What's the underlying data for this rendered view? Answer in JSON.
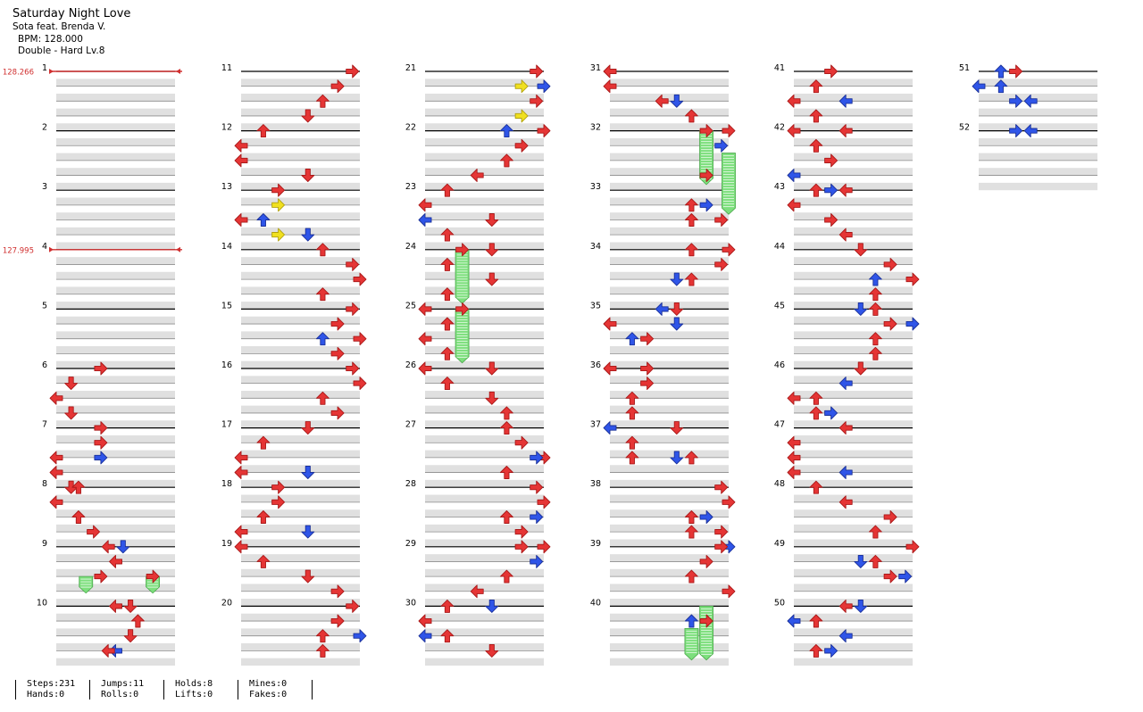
{
  "song": {
    "title": "Saturday Night Love",
    "artist": "Sota feat. Brenda V.",
    "bpm": "BPM: 128.000",
    "difficulty": "Double - Hard  Lv.8"
  },
  "bpm_changes": [
    {
      "measure": 1,
      "label": "128.266"
    },
    {
      "measure": 4,
      "label": "127.995"
    }
  ],
  "measures_per_column": 10,
  "total_measures": 52,
  "colors": {
    "red": "#e53535",
    "blue": "#2f55e8",
    "yellow": "#f0e020",
    "hold": "#7ddf7d",
    "stripe": "#e0e0e0",
    "bpm": "#d03030"
  },
  "notes": [
    [
      6,
      0,
      6,
      "r"
    ],
    [
      6,
      1,
      2,
      "r"
    ],
    [
      6,
      2,
      0,
      "r"
    ],
    [
      6,
      3,
      2,
      "r"
    ],
    [
      7,
      0,
      6,
      "r"
    ],
    [
      7,
      1,
      6,
      "r"
    ],
    [
      7,
      2,
      0,
      "r"
    ],
    [
      7,
      2,
      6,
      "b"
    ],
    [
      7,
      3,
      0,
      "r"
    ],
    [
      8,
      0,
      2,
      "r"
    ],
    [
      8,
      0,
      3,
      "r"
    ],
    [
      8,
      1,
      0,
      "r"
    ],
    [
      8,
      2,
      3,
      "r"
    ],
    [
      8,
      3,
      5,
      "r"
    ],
    [
      9,
      0,
      7,
      "r"
    ],
    [
      9,
      0,
      9,
      "b"
    ],
    [
      9,
      1,
      8,
      "r"
    ],
    [
      9,
      2,
      6,
      "r"
    ],
    [
      9,
      2,
      13,
      "r"
    ],
    [
      10,
      0,
      8,
      "r"
    ],
    [
      10,
      0,
      10,
      "r"
    ],
    [
      10,
      1,
      11,
      "r"
    ],
    [
      10,
      2,
      10,
      "r"
    ],
    [
      10,
      3,
      8,
      "b"
    ],
    [
      10,
      3,
      7,
      "r"
    ],
    [
      11,
      0,
      15,
      "r"
    ],
    [
      11,
      1,
      13,
      "r"
    ],
    [
      11,
      2,
      11,
      "r"
    ],
    [
      11,
      3,
      9,
      "r"
    ],
    [
      12,
      0,
      3,
      "r"
    ],
    [
      12,
      1,
      0,
      "r"
    ],
    [
      12,
      2,
      0,
      "r"
    ],
    [
      12,
      3,
      9,
      "r"
    ],
    [
      13,
      0,
      5,
      "r"
    ],
    [
      13,
      1,
      5,
      "y"
    ],
    [
      13,
      2,
      0,
      "r"
    ],
    [
      13,
      2,
      3,
      "b"
    ],
    [
      13,
      3,
      5,
      "y"
    ],
    [
      13,
      3,
      9,
      "b"
    ],
    [
      14,
      0,
      11,
      "r"
    ],
    [
      14,
      1,
      15,
      "r"
    ],
    [
      14,
      2,
      16,
      "r"
    ],
    [
      14,
      3,
      11,
      "r"
    ],
    [
      15,
      0,
      15,
      "r"
    ],
    [
      15,
      1,
      13,
      "r"
    ],
    [
      15,
      2,
      11,
      "b"
    ],
    [
      15,
      2,
      16,
      "r"
    ],
    [
      15,
      3,
      13,
      "r"
    ],
    [
      16,
      0,
      15,
      "r"
    ],
    [
      16,
      1,
      16,
      "r"
    ],
    [
      16,
      2,
      11,
      "r"
    ],
    [
      16,
      3,
      13,
      "r"
    ],
    [
      17,
      0,
      9,
      "r"
    ],
    [
      17,
      1,
      3,
      "r"
    ],
    [
      17,
      2,
      0,
      "r"
    ],
    [
      17,
      3,
      0,
      "r"
    ],
    [
      17,
      3,
      9,
      "b"
    ],
    [
      18,
      0,
      5,
      "r"
    ],
    [
      18,
      1,
      5,
      "r"
    ],
    [
      18,
      2,
      3,
      "r"
    ],
    [
      18,
      3,
      0,
      "r"
    ],
    [
      18,
      3,
      9,
      "b"
    ],
    [
      19,
      0,
      0,
      "r"
    ],
    [
      19,
      1,
      3,
      "r"
    ],
    [
      19,
      2,
      9,
      "r"
    ],
    [
      19,
      3,
      13,
      "r"
    ],
    [
      20,
      0,
      15,
      "r"
    ],
    [
      20,
      1,
      13,
      "r"
    ],
    [
      20,
      2,
      11,
      "r"
    ],
    [
      20,
      2,
      16,
      "b"
    ],
    [
      20,
      3,
      11,
      "r"
    ],
    [
      21,
      0,
      15,
      "r"
    ],
    [
      21,
      1,
      13,
      "y"
    ],
    [
      21,
      1,
      16,
      "b"
    ],
    [
      21,
      2,
      15,
      "r"
    ],
    [
      21,
      3,
      13,
      "y"
    ],
    [
      22,
      0,
      11,
      "b"
    ],
    [
      22,
      0,
      16,
      "r"
    ],
    [
      22,
      1,
      13,
      "r"
    ],
    [
      22,
      2,
      11,
      "r"
    ],
    [
      22,
      3,
      7,
      "r"
    ],
    [
      23,
      0,
      3,
      "r"
    ],
    [
      23,
      1,
      0,
      "r"
    ],
    [
      23,
      2,
      9,
      "r"
    ],
    [
      23,
      2,
      0,
      "b"
    ],
    [
      23,
      3,
      3,
      "r"
    ],
    [
      24,
      0,
      5,
      "r"
    ],
    [
      24,
      0,
      9,
      "r"
    ],
    [
      24,
      1,
      3,
      "r"
    ],
    [
      24,
      2,
      9,
      "r"
    ],
    [
      24,
      3,
      3,
      "r"
    ],
    [
      25,
      0,
      0,
      "r"
    ],
    [
      25,
      0,
      5,
      "r"
    ],
    [
      25,
      1,
      3,
      "r"
    ],
    [
      25,
      2,
      0,
      "r"
    ],
    [
      25,
      3,
      3,
      "r"
    ],
    [
      26,
      0,
      0,
      "r"
    ],
    [
      26,
      0,
      9,
      "r"
    ],
    [
      26,
      1,
      3,
      "r"
    ],
    [
      26,
      2,
      9,
      "r"
    ],
    [
      26,
      3,
      11,
      "r"
    ],
    [
      27,
      0,
      11,
      "r"
    ],
    [
      27,
      1,
      13,
      "r"
    ],
    [
      27,
      2,
      16,
      "r"
    ],
    [
      27,
      2,
      15,
      "b"
    ],
    [
      27,
      3,
      11,
      "r"
    ],
    [
      28,
      0,
      15,
      "r"
    ],
    [
      28,
      1,
      16,
      "r"
    ],
    [
      28,
      2,
      11,
      "r"
    ],
    [
      28,
      2,
      15,
      "b"
    ],
    [
      28,
      3,
      13,
      "r"
    ],
    [
      29,
      0,
      16,
      "r"
    ],
    [
      29,
      0,
      13,
      "r"
    ],
    [
      29,
      1,
      15,
      "b"
    ],
    [
      29,
      2,
      11,
      "r"
    ],
    [
      29,
      3,
      7,
      "r"
    ],
    [
      30,
      0,
      3,
      "r"
    ],
    [
      30,
      0,
      9,
      "b"
    ],
    [
      30,
      1,
      0,
      "r"
    ],
    [
      30,
      2,
      3,
      "r"
    ],
    [
      30,
      2,
      0,
      "b"
    ],
    [
      30,
      3,
      9,
      "r"
    ],
    [
      31,
      0,
      0,
      "r"
    ],
    [
      31,
      1,
      0,
      "r"
    ],
    [
      31,
      2,
      7,
      "r"
    ],
    [
      31,
      2,
      9,
      "b"
    ],
    [
      31,
      3,
      11,
      "r"
    ],
    [
      32,
      0,
      13,
      "r"
    ],
    [
      32,
      0,
      16,
      "r"
    ],
    [
      32,
      1,
      15,
      "b"
    ],
    [
      32,
      3,
      13,
      "r"
    ],
    [
      33,
      1,
      13,
      "b"
    ],
    [
      33,
      1,
      11,
      "r"
    ],
    [
      33,
      2,
      11,
      "r"
    ],
    [
      33,
      2,
      15,
      "r"
    ],
    [
      34,
      0,
      11,
      "r"
    ],
    [
      34,
      0,
      16,
      "r"
    ],
    [
      34,
      1,
      15,
      "r"
    ],
    [
      34,
      2,
      9,
      "b"
    ],
    [
      34,
      2,
      11,
      "r"
    ],
    [
      35,
      0,
      9,
      "r"
    ],
    [
      35,
      0,
      7,
      "b"
    ],
    [
      35,
      1,
      0,
      "r"
    ],
    [
      35,
      1,
      9,
      "b"
    ],
    [
      35,
      2,
      3,
      "b"
    ],
    [
      35,
      2,
      5,
      "r"
    ],
    [
      36,
      0,
      0,
      "r"
    ],
    [
      36,
      0,
      5,
      "r"
    ],
    [
      36,
      1,
      5,
      "r"
    ],
    [
      36,
      2,
      3,
      "r"
    ],
    [
      36,
      3,
      3,
      "r"
    ],
    [
      37,
      0,
      9,
      "r"
    ],
    [
      37,
      0,
      0,
      "b"
    ],
    [
      37,
      1,
      3,
      "r"
    ],
    [
      37,
      2,
      3,
      "r"
    ],
    [
      37,
      2,
      9,
      "b"
    ],
    [
      37,
      2,
      11,
      "r"
    ],
    [
      38,
      0,
      15,
      "r"
    ],
    [
      38,
      1,
      16,
      "r"
    ],
    [
      38,
      2,
      11,
      "r"
    ],
    [
      38,
      2,
      13,
      "b"
    ],
    [
      38,
      3,
      11,
      "r"
    ],
    [
      38,
      3,
      15,
      "r"
    ],
    [
      39,
      0,
      16,
      "b"
    ],
    [
      39,
      0,
      15,
      "r"
    ],
    [
      39,
      1,
      13,
      "r"
    ],
    [
      39,
      2,
      11,
      "r"
    ],
    [
      39,
      3,
      16,
      "r"
    ],
    [
      40,
      1,
      11,
      "b"
    ],
    [
      40,
      1,
      13,
      "r"
    ],
    [
      41,
      0,
      5,
      "r"
    ],
    [
      41,
      1,
      3,
      "r"
    ],
    [
      41,
      2,
      0,
      "r"
    ],
    [
      41,
      2,
      7,
      "b"
    ],
    [
      41,
      3,
      3,
      "r"
    ],
    [
      42,
      0,
      0,
      "r"
    ],
    [
      42,
      0,
      7,
      "r"
    ],
    [
      42,
      1,
      3,
      "r"
    ],
    [
      42,
      2,
      5,
      "r"
    ],
    [
      42,
      3,
      0,
      "b"
    ],
    [
      43,
      0,
      3,
      "r"
    ],
    [
      43,
      0,
      5,
      "b"
    ],
    [
      43,
      0,
      7,
      "r"
    ],
    [
      43,
      1,
      0,
      "r"
    ],
    [
      43,
      2,
      5,
      "r"
    ],
    [
      43,
      3,
      7,
      "r"
    ],
    [
      44,
      0,
      9,
      "r"
    ],
    [
      44,
      1,
      13,
      "r"
    ],
    [
      44,
      2,
      11,
      "b"
    ],
    [
      44,
      2,
      16,
      "r"
    ],
    [
      44,
      3,
      11,
      "r"
    ],
    [
      45,
      0,
      9,
      "b"
    ],
    [
      45,
      0,
      11,
      "r"
    ],
    [
      45,
      1,
      13,
      "r"
    ],
    [
      45,
      1,
      16,
      "b"
    ],
    [
      45,
      2,
      11,
      "r"
    ],
    [
      45,
      3,
      11,
      "r"
    ],
    [
      46,
      0,
      9,
      "r"
    ],
    [
      46,
      1,
      7,
      "b"
    ],
    [
      46,
      2,
      3,
      "r"
    ],
    [
      46,
      2,
      0,
      "r"
    ],
    [
      46,
      3,
      5,
      "b"
    ],
    [
      46,
      3,
      3,
      "r"
    ],
    [
      47,
      0,
      7,
      "r"
    ],
    [
      47,
      1,
      0,
      "r"
    ],
    [
      47,
      2,
      0,
      "r"
    ],
    [
      47,
      3,
      0,
      "r"
    ],
    [
      47,
      3,
      7,
      "b"
    ],
    [
      48,
      0,
      3,
      "r"
    ],
    [
      48,
      1,
      7,
      "r"
    ],
    [
      48,
      2,
      13,
      "r"
    ],
    [
      48,
      3,
      11,
      "r"
    ],
    [
      49,
      0,
      16,
      "r"
    ],
    [
      49,
      1,
      9,
      "b"
    ],
    [
      49,
      1,
      11,
      "r"
    ],
    [
      49,
      2,
      13,
      "r"
    ],
    [
      49,
      2,
      15,
      "b"
    ],
    [
      50,
      0,
      7,
      "r"
    ],
    [
      50,
      0,
      9,
      "b"
    ],
    [
      50,
      1,
      3,
      "r"
    ],
    [
      50,
      1,
      0,
      "b"
    ],
    [
      50,
      2,
      7,
      "b"
    ],
    [
      50,
      3,
      3,
      "r"
    ],
    [
      50,
      3,
      5,
      "b"
    ],
    [
      51,
      0,
      5,
      "r"
    ],
    [
      51,
      0,
      3,
      "b"
    ],
    [
      51,
      1,
      3,
      "b"
    ],
    [
      51,
      1,
      0,
      "b"
    ],
    [
      51,
      2,
      5,
      "b"
    ],
    [
      51,
      2,
      7,
      "b"
    ],
    [
      52,
      0,
      5,
      "b"
    ],
    [
      52,
      0,
      7,
      "b"
    ]
  ],
  "holds": [
    [
      9,
      2.0,
      3.0,
      4
    ],
    [
      9,
      2.0,
      3.0,
      13
    ],
    [
      24,
      0.0,
      3.5,
      5
    ],
    [
      25,
      0.0,
      3.5,
      5
    ],
    [
      32,
      0.0,
      3.5,
      13
    ],
    [
      32,
      1.5,
      5.5,
      16
    ],
    [
      40,
      1.5,
      3.5,
      11
    ],
    [
      40,
      0.0,
      3.5,
      13
    ]
  ],
  "stats": {
    "steps": "Steps:231",
    "hands": "Hands:0",
    "jumps": "Jumps:11",
    "rolls": "Rolls:0",
    "holds": "Holds:8",
    "lifts": "Lifts:0",
    "mines": "Mines:0",
    "fakes": "Fakes:0"
  }
}
